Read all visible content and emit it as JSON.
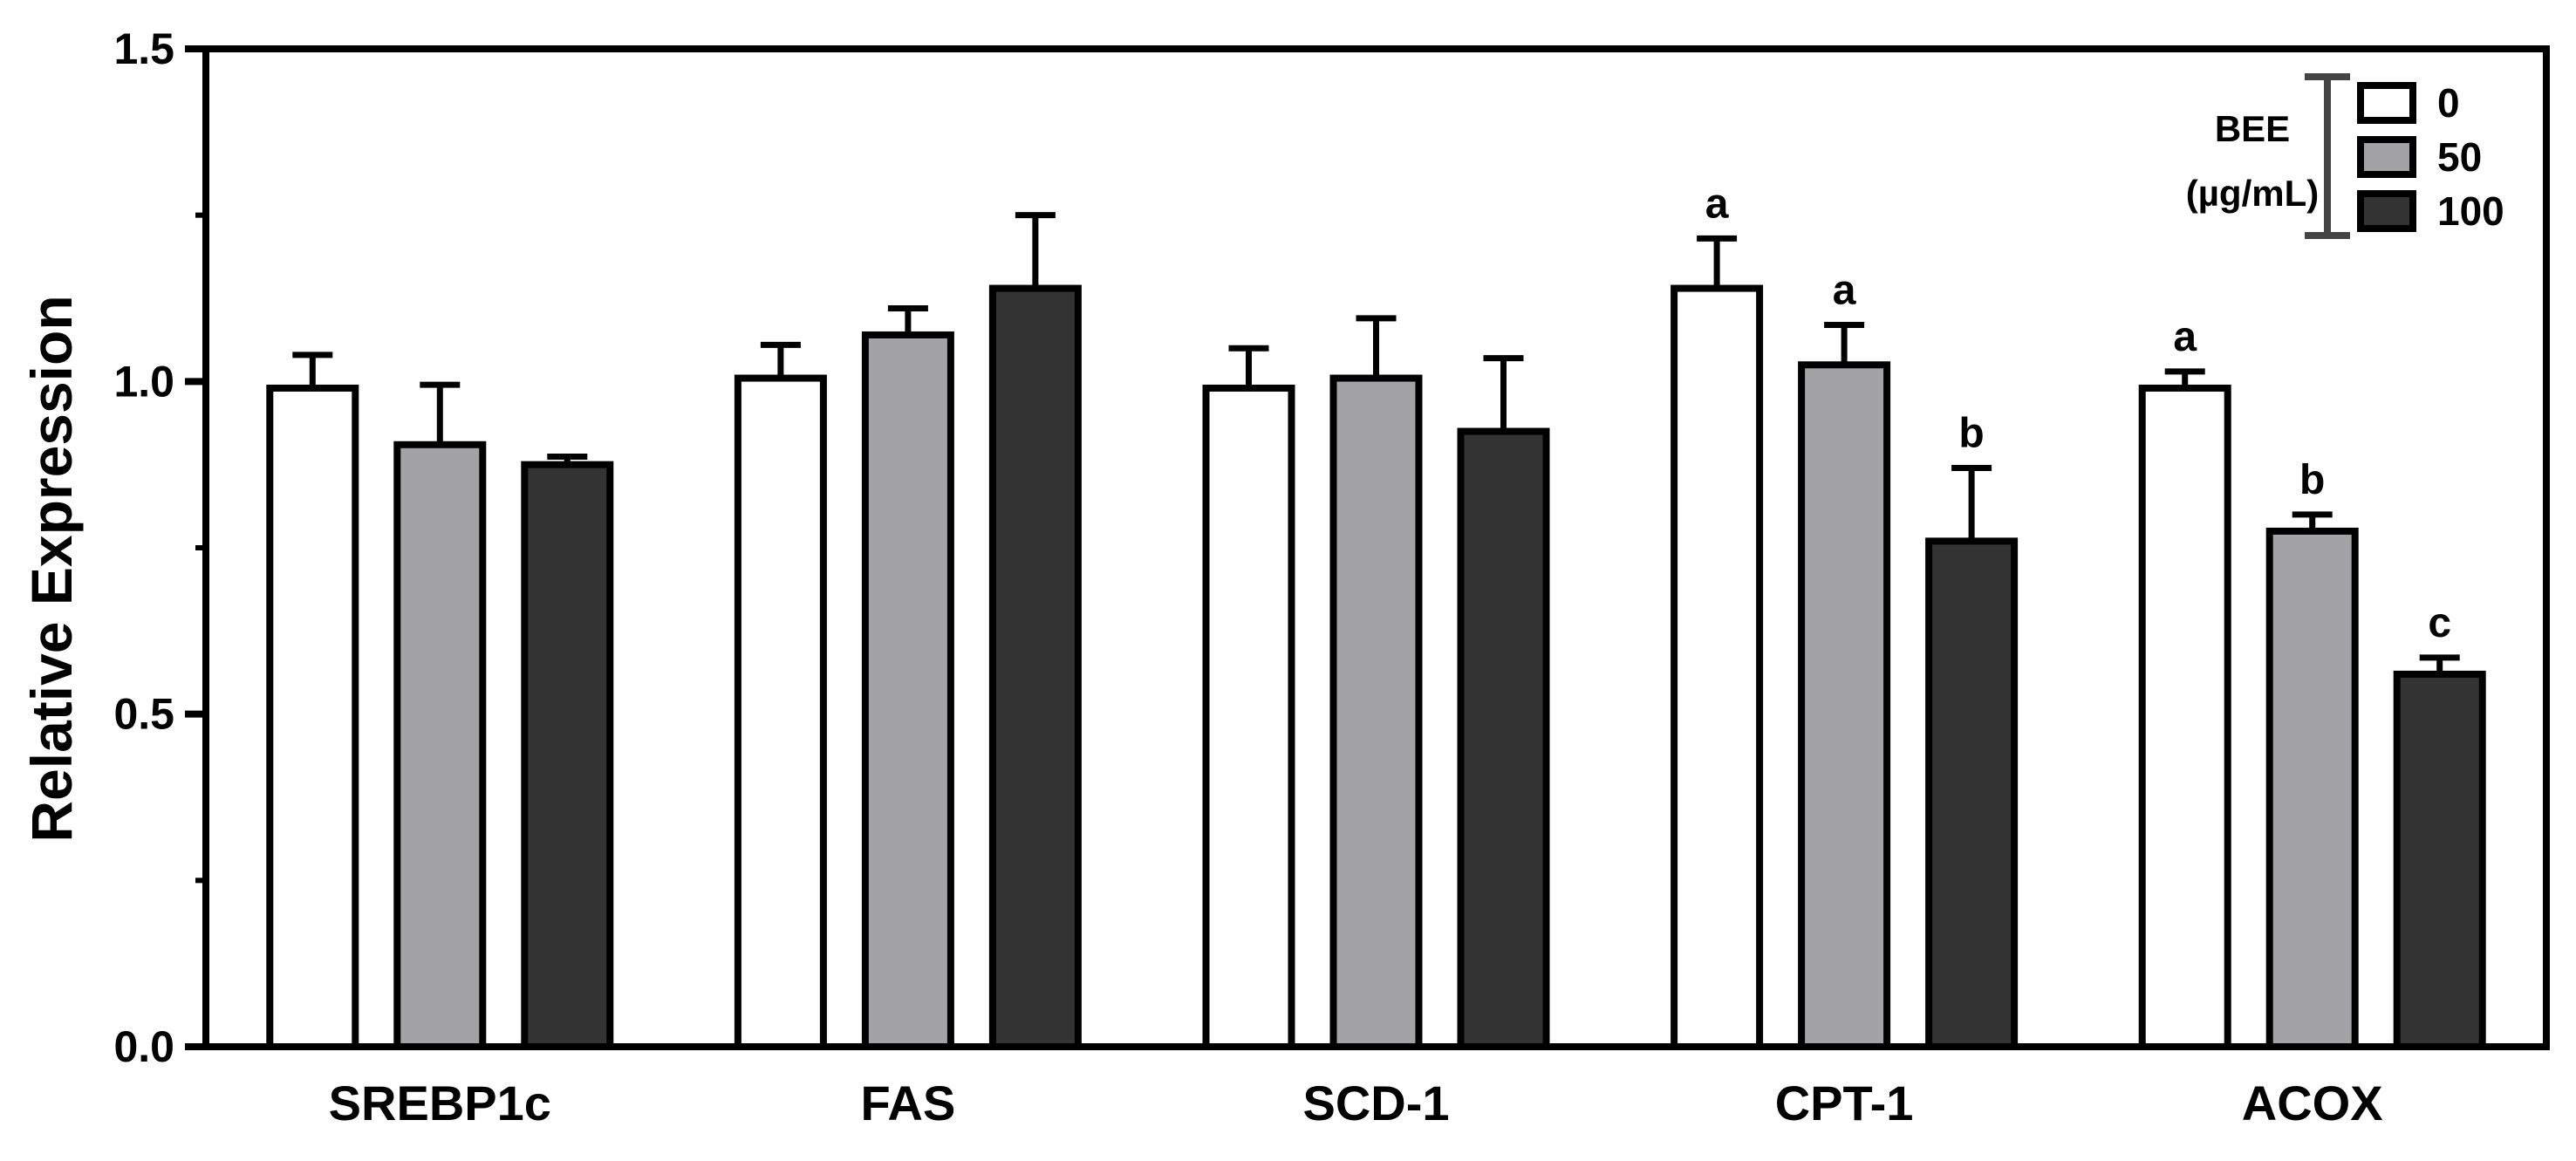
{
  "chart_data": {
    "type": "bar",
    "ylabel": "Relative Expression",
    "xlabel": "",
    "ylim": [
      0,
      1.5
    ],
    "yticks": [
      0.0,
      0.5,
      1.0,
      1.5
    ],
    "ytick_labels": [
      "0.0",
      "0.5",
      "1.0",
      "1.5"
    ],
    "categories": [
      "SREBP1c",
      "FAS",
      "SCD-1",
      "CPT-1",
      "ACOX"
    ],
    "legend": {
      "title_line1": "BEE",
      "title_line2": "(µg/mL)",
      "position": "top-right"
    },
    "series": [
      {
        "name": "0",
        "color": "#ffffff",
        "values": [
          0.99,
          1.005,
          0.99,
          1.14,
          0.99
        ],
        "errors": [
          0.05,
          0.05,
          0.06,
          0.075,
          0.025
        ],
        "labels": [
          "",
          "",
          "",
          "a",
          "a"
        ]
      },
      {
        "name": "50",
        "color": "#a3a3a6",
        "values": [
          0.905,
          1.07,
          1.005,
          1.025,
          0.775
        ],
        "errors": [
          0.09,
          0.04,
          0.09,
          0.06,
          0.025
        ],
        "labels": [
          "",
          "",
          "",
          "a",
          "b"
        ]
      },
      {
        "name": "100",
        "color": "#333333",
        "values": [
          0.875,
          1.14,
          0.925,
          0.76,
          0.56
        ],
        "errors": [
          0.012,
          0.11,
          0.11,
          0.11,
          0.025
        ],
        "labels": [
          "",
          "",
          "",
          "b",
          "c"
        ]
      }
    ]
  }
}
